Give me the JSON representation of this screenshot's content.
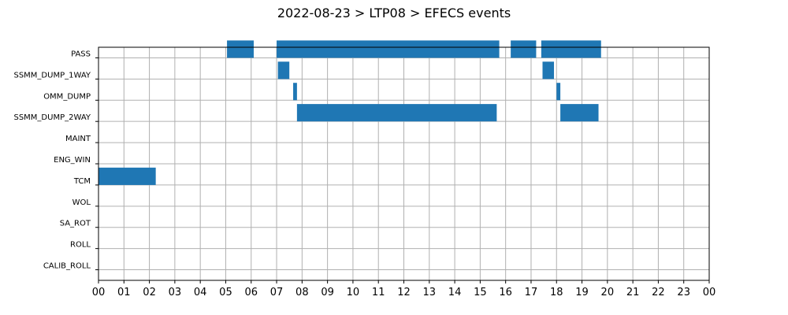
{
  "title": "2022-08-23 > LTP08 > EFECS events",
  "chart_data": {
    "type": "bar",
    "orientation": "horizontal-timeline",
    "title": "2022-08-23 > LTP08 > EFECS events",
    "xlabel": "",
    "ylabel": "",
    "xlim": [
      0,
      24
    ],
    "x_ticks": [
      "00",
      "01",
      "02",
      "03",
      "04",
      "05",
      "06",
      "07",
      "08",
      "09",
      "10",
      "11",
      "12",
      "13",
      "14",
      "15",
      "16",
      "17",
      "18",
      "19",
      "20",
      "21",
      "22",
      "23",
      "00"
    ],
    "categories": [
      "PASS",
      "SSMM_DUMP_1WAY",
      "OMM_DUMP",
      "SSMM_DUMP_2WAY",
      "MAINT",
      "ENG_WIN",
      "TCM",
      "WOL",
      "SA_ROT",
      "ROLL",
      "CALIB_ROLL"
    ],
    "grid": true,
    "bar_color": "#1f77b4",
    "events": [
      {
        "category": "PASS",
        "start": 5.05,
        "end": 6.1
      },
      {
        "category": "PASS",
        "start": 7.0,
        "end": 15.75
      },
      {
        "category": "PASS",
        "start": 16.2,
        "end": 17.2
      },
      {
        "category": "PASS",
        "start": 17.4,
        "end": 19.75
      },
      {
        "category": "SSMM_DUMP_1WAY",
        "start": 7.05,
        "end": 7.5
      },
      {
        "category": "SSMM_DUMP_1WAY",
        "start": 17.45,
        "end": 17.9
      },
      {
        "category": "OMM_DUMP",
        "start": 7.65,
        "end": 7.8
      },
      {
        "category": "OMM_DUMP",
        "start": 18.0,
        "end": 18.15
      },
      {
        "category": "SSMM_DUMP_2WAY",
        "start": 7.8,
        "end": 15.65
      },
      {
        "category": "SSMM_DUMP_2WAY",
        "start": 18.15,
        "end": 19.65
      },
      {
        "category": "TCM",
        "start": 0.0,
        "end": 2.25
      }
    ]
  }
}
